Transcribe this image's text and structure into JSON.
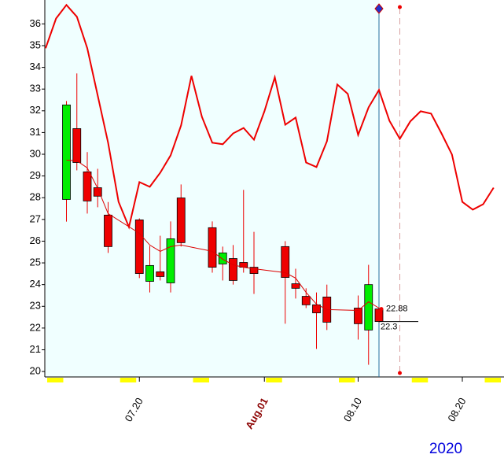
{
  "chart_data": {
    "type": "candlestick",
    "x": [
      "2020-07-13",
      "2020-07-14",
      "2020-07-15",
      "2020-07-16",
      "2020-07-17",
      "2020-07-20",
      "2020-07-21",
      "2020-07-22",
      "2020-07-23",
      "2020-07-24",
      "2020-07-27",
      "2020-07-28",
      "2020-07-29",
      "2020-07-30",
      "2020-07-31",
      "2020-08-03",
      "2020-08-04",
      "2020-08-05",
      "2020-08-06",
      "2020-08-07",
      "2020-08-10",
      "2020-08-11",
      "2020-08-12"
    ],
    "open": [
      27.92,
      31.18,
      29.19,
      28.46,
      27.2,
      26.98,
      24.15,
      24.59,
      24.08,
      27.99,
      26.62,
      24.95,
      25.2,
      25.02,
      24.8,
      25.75,
      24.04,
      23.46,
      23.07,
      23.43,
      22.92,
      21.91,
      22.88
    ],
    "high": [
      32.45,
      33.72,
      30.1,
      29.33,
      27.8,
      27.05,
      25.78,
      26.25,
      26.91,
      28.61,
      26.91,
      25.75,
      25.82,
      28.36,
      26.43,
      26.0,
      24.73,
      23.83,
      23.64,
      24.0,
      23.5,
      24.91,
      22.95
    ],
    "low": [
      26.9,
      29.26,
      27.27,
      27.56,
      25.46,
      24.3,
      23.64,
      24.19,
      23.64,
      25.75,
      24.55,
      24.19,
      24.0,
      24.55,
      23.57,
      22.2,
      23.36,
      22.92,
      21.04,
      21.91,
      21.47,
      20.31,
      22.25
    ],
    "close": [
      32.27,
      29.62,
      27.85,
      28.07,
      25.75,
      24.51,
      24.88,
      24.37,
      26.11,
      25.93,
      24.8,
      25.46,
      24.19,
      24.8,
      24.51,
      24.33,
      23.83,
      23.07,
      22.7,
      22.27,
      22.2,
      24.0,
      22.3
    ],
    "up_color": "#00ee00",
    "down_color": "#ee0000",
    "ma_values": [
      29.73,
      29.7,
      29.37,
      28.43,
      27.27,
      26.36,
      25.82,
      25.53,
      25.75,
      25.82,
      25.53,
      25.17,
      24.91,
      24.8,
      24.73,
      24.55,
      24.3,
      23.64,
      23.1,
      22.85,
      22.81,
      23.21,
      22.92
    ],
    "ma_color": "#dd0000",
    "overlay": {
      "color": "#ee0000",
      "x": [
        "2020-07-11",
        "2020-07-12",
        "2020-07-13",
        "2020-07-14",
        "2020-07-15",
        "2020-07-16",
        "2020-07-17",
        "2020-07-18",
        "2020-07-19",
        "2020-07-20",
        "2020-07-21",
        "2020-07-22",
        "2020-07-23",
        "2020-07-24",
        "2020-07-25",
        "2020-07-26",
        "2020-07-27",
        "2020-07-28",
        "2020-07-29",
        "2020-07-30",
        "2020-07-31",
        "2020-08-01",
        "2020-08-02",
        "2020-08-03",
        "2020-08-04",
        "2020-08-05",
        "2020-08-06",
        "2020-08-07",
        "2020-08-08",
        "2020-08-09",
        "2020-08-10",
        "2020-08-11",
        "2020-08-12",
        "2020-08-13",
        "2020-08-14",
        "2020-08-15",
        "2020-08-16",
        "2020-08-17",
        "2020-08-18",
        "2020-08-19",
        "2020-08-20",
        "2020-08-21",
        "2020-08-22",
        "2020-08-23"
      ],
      "values": [
        34.88,
        36.25,
        36.87,
        36.33,
        34.88,
        32.7,
        30.53,
        27.81,
        26.65,
        28.72,
        28.5,
        29.15,
        29.95,
        31.33,
        33.61,
        31.72,
        30.53,
        30.46,
        30.96,
        31.21,
        30.67,
        31.98,
        33.54,
        31.36,
        31.69,
        29.62,
        29.41,
        30.6,
        33.21,
        32.78,
        30.89,
        32.16,
        32.96,
        31.54,
        30.71,
        31.51,
        31.98,
        31.87,
        30.96,
        29.99,
        27.81,
        27.45,
        27.7,
        28.46
      ]
    },
    "xlim": [
      "2020-07-11",
      "2020-08-24"
    ],
    "xticks": [
      {
        "value": "2020-07-20",
        "label": "07.20",
        "color": "#000000"
      },
      {
        "value": "2020-08-01",
        "label": "Aug.01",
        "color": "#8b0000"
      },
      {
        "value": "2020-08-10",
        "label": "08.10",
        "color": "#000000"
      },
      {
        "value": "2020-08-20",
        "label": "08.20",
        "color": "#000000"
      }
    ],
    "ylim": [
      19.75,
      37.1
    ],
    "yticks": [
      20,
      21,
      22,
      23,
      24,
      25,
      26,
      27,
      28,
      29,
      30,
      31,
      32,
      33,
      34,
      35,
      36
    ],
    "cursor_date": "2020-08-12",
    "marker_date": "2020-08-14",
    "weekend_color": "#ffff00",
    "year": "2020"
  }
}
